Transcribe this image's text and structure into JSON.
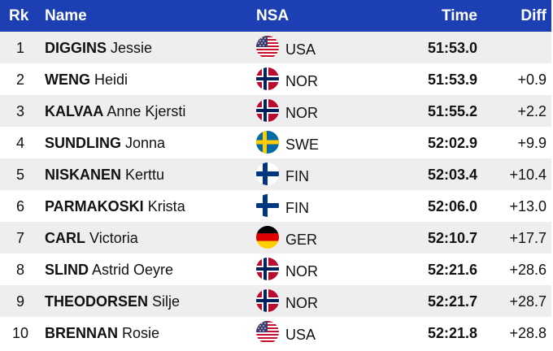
{
  "header": {
    "rank": "Rk",
    "name": "Name",
    "nsa": "NSA",
    "time": "Time",
    "diff": "Diff"
  },
  "rows": [
    {
      "rank": "1",
      "last": "DIGGINS",
      "first": "Jessie",
      "nsa": "USA",
      "flag": "usa-flag-icon",
      "time": "51:53.0",
      "diff": ""
    },
    {
      "rank": "2",
      "last": "WENG",
      "first": "Heidi",
      "nsa": "NOR",
      "flag": "norway-flag-icon",
      "time": "51:53.9",
      "diff": "+0.9"
    },
    {
      "rank": "3",
      "last": "KALVAA",
      "first": "Anne Kjersti",
      "nsa": "NOR",
      "flag": "norway-flag-icon",
      "time": "51:55.2",
      "diff": "+2.2"
    },
    {
      "rank": "4",
      "last": "SUNDLING",
      "first": "Jonna",
      "nsa": "SWE",
      "flag": "sweden-flag-icon",
      "time": "52:02.9",
      "diff": "+9.9"
    },
    {
      "rank": "5",
      "last": "NISKANEN",
      "first": "Kerttu",
      "nsa": "FIN",
      "flag": "finland-flag-icon",
      "time": "52:03.4",
      "diff": "+10.4"
    },
    {
      "rank": "6",
      "last": "PARMAKOSKI",
      "first": "Krista",
      "nsa": "FIN",
      "flag": "finland-flag-icon",
      "time": "52:06.0",
      "diff": "+13.0"
    },
    {
      "rank": "7",
      "last": "CARL",
      "first": "Victoria",
      "nsa": "GER",
      "flag": "germany-flag-icon",
      "time": "52:10.7",
      "diff": "+17.7"
    },
    {
      "rank": "8",
      "last": "SLIND",
      "first": "Astrid Oeyre",
      "nsa": "NOR",
      "flag": "norway-flag-icon",
      "time": "52:21.6",
      "diff": "+28.6"
    },
    {
      "rank": "9",
      "last": "THEODORSEN",
      "first": "Silje",
      "nsa": "NOR",
      "flag": "norway-flag-icon",
      "time": "52:21.7",
      "diff": "+28.7"
    },
    {
      "rank": "10",
      "last": "BRENNAN",
      "first": "Rosie",
      "nsa": "USA",
      "flag": "usa-flag-icon",
      "time": "52:21.8",
      "diff": "+28.8"
    }
  ],
  "colors": {
    "header_bg": "#1d3fb4",
    "row_even": "#eeeeee",
    "row_odd": "#ffffff"
  }
}
